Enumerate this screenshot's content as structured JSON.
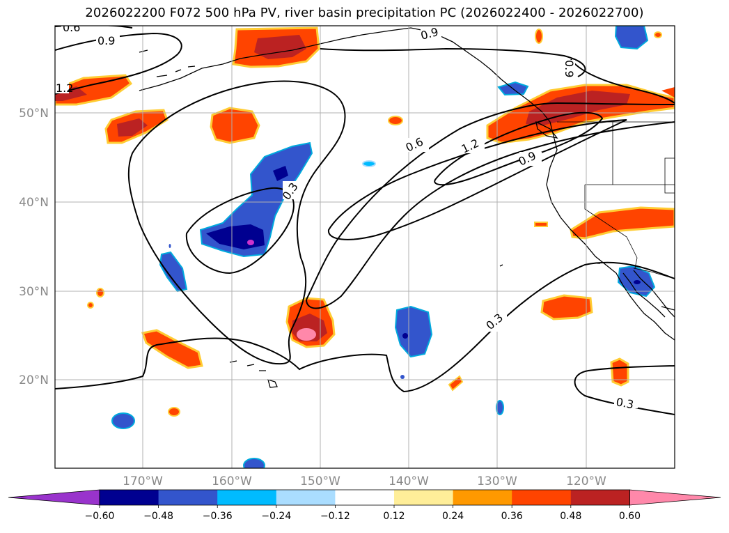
{
  "title": "2026022200 F072 500 hPa PV, river basin precipitation PC (2026022400 - 2026022700)",
  "axes": {
    "lon_labels": [
      "170°W",
      "160°W",
      "150°W",
      "140°W",
      "130°W",
      "120°W"
    ],
    "lat_labels": [
      "50°N",
      "40°N",
      "30°N",
      "20°N"
    ]
  },
  "contour_labels": [
    "0.6",
    "0.9",
    "0.9",
    "0.9",
    "0.6",
    "1.2",
    "0.9",
    "0.3",
    "0.3",
    "0.3",
    "1.2"
  ],
  "colorbar": {
    "ticks": [
      "−0.60",
      "−0.48",
      "−0.36",
      "−0.24",
      "−0.12",
      "0.12",
      "0.24",
      "0.36",
      "0.48",
      "0.60"
    ],
    "colors": [
      "#9933cc",
      "#000090",
      "#3355cc",
      "#00bbff",
      "#aaddff",
      "#ffffff",
      "#ffee99",
      "#ff9900",
      "#ff4400",
      "#bb2222",
      "#ff88aa"
    ]
  }
}
